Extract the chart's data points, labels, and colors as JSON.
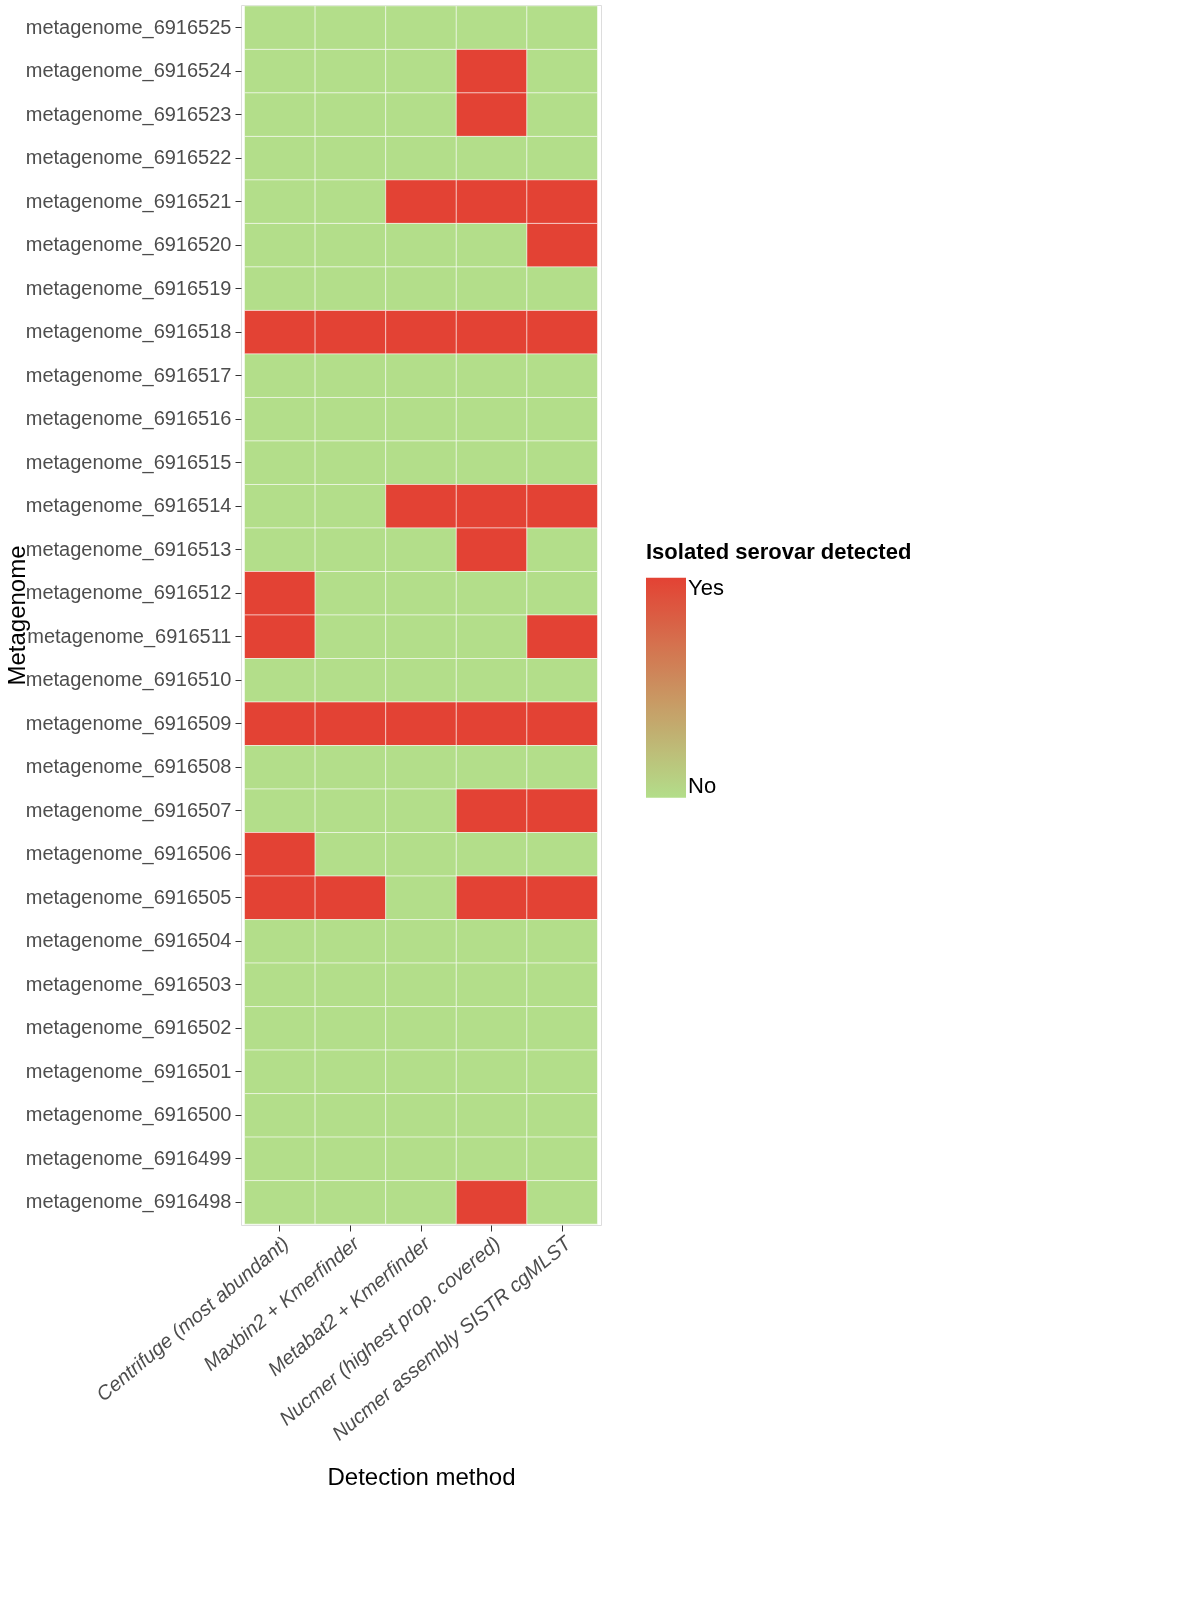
{
  "chart_data": {
    "type": "heatmap",
    "xlabel": "Detection method",
    "ylabel": "Metagenome",
    "grid": false,
    "categories": [
      "Centrifuge (most abundant)",
      "Maxbin2 + Kmerfinder",
      "Metabat2 + Kmerfinder",
      "Nucmer (highest prop. covered)",
      "Nucmer assembly SISTR cgMLST"
    ],
    "y_categories": [
      "metagenome_6916525",
      "metagenome_6916524",
      "metagenome_6916523",
      "metagenome_6916522",
      "metagenome_6916521",
      "metagenome_6916520",
      "metagenome_6916519",
      "metagenome_6916518",
      "metagenome_6916517",
      "metagenome_6916516",
      "metagenome_6916515",
      "metagenome_6916514",
      "metagenome_6916513",
      "metagenome_6916512",
      "metagenome_6916511",
      "metagenome_6916510",
      "metagenome_6916509",
      "metagenome_6916508",
      "metagenome_6916507",
      "metagenome_6916506",
      "metagenome_6916505",
      "metagenome_6916504",
      "metagenome_6916503",
      "metagenome_6916502",
      "metagenome_6916501",
      "metagenome_6916500",
      "metagenome_6916499",
      "metagenome_6916498"
    ],
    "clabel": "Isolated serovar detected",
    "clim": [
      0,
      1
    ],
    "cticks": [
      {
        "value": 0,
        "label": "No"
      },
      {
        "value": 1,
        "label": "Yes"
      }
    ],
    "colors": [
      "#b3de8a",
      "#e34234"
    ],
    "cells": [
      [
        0,
        0,
        0,
        0,
        0
      ],
      [
        0,
        0,
        0,
        1,
        0
      ],
      [
        0,
        0,
        0,
        1,
        0
      ],
      [
        0,
        0,
        0,
        0,
        0
      ],
      [
        0,
        0,
        1,
        1,
        1
      ],
      [
        0,
        0,
        0,
        0,
        1
      ],
      [
        0,
        0,
        0,
        0,
        0
      ],
      [
        1,
        1,
        1,
        1,
        1
      ],
      [
        0,
        0,
        0,
        0,
        0
      ],
      [
        0,
        0,
        0,
        0,
        0
      ],
      [
        0,
        0,
        0,
        0,
        0
      ],
      [
        0,
        0,
        1,
        1,
        1
      ],
      [
        0,
        0,
        0,
        1,
        0
      ],
      [
        1,
        0,
        0,
        0,
        0
      ],
      [
        1,
        0,
        0,
        0,
        1
      ],
      [
        0,
        0,
        0,
        0,
        0
      ],
      [
        1,
        1,
        1,
        1,
        1
      ],
      [
        0,
        0,
        0,
        0,
        0
      ],
      [
        0,
        0,
        0,
        1,
        1
      ],
      [
        1,
        0,
        0,
        0,
        0
      ],
      [
        1,
        1,
        0,
        1,
        1
      ],
      [
        0,
        0,
        0,
        0,
        0
      ],
      [
        0,
        0,
        0,
        0,
        0
      ],
      [
        0,
        0,
        0,
        0,
        0
      ],
      [
        0,
        0,
        0,
        0,
        0
      ],
      [
        0,
        0,
        0,
        0,
        0
      ],
      [
        0,
        0,
        0,
        0,
        0
      ],
      [
        0,
        0,
        0,
        1,
        0
      ]
    ]
  }
}
